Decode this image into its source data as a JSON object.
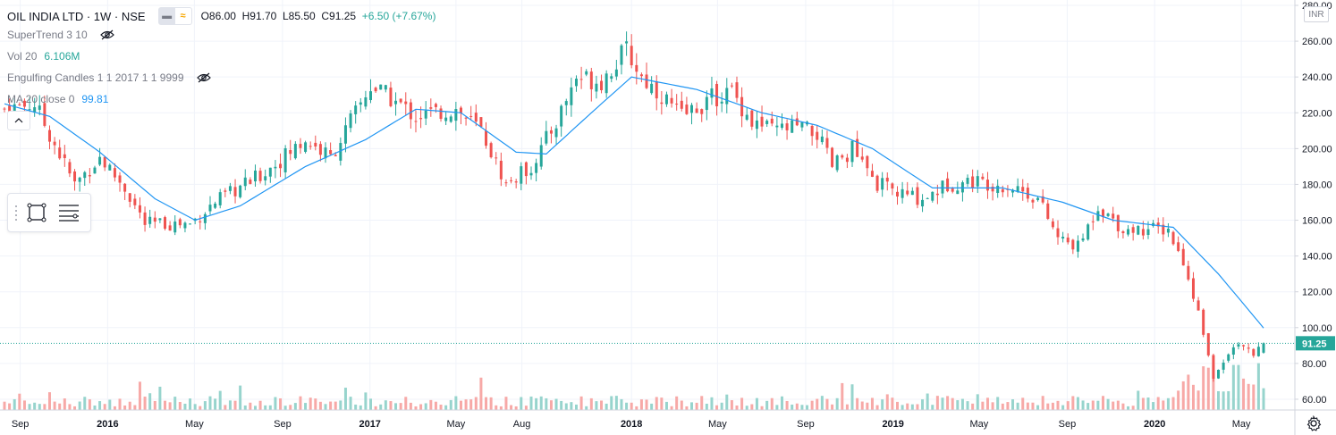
{
  "header": {
    "symbol": "OIL INDIA LTD · 1W · NSE",
    "open": "O86.00",
    "high": "H91.70",
    "low": "L85.50",
    "close": "C91.25",
    "change": "+6.50 (+7.67%)"
  },
  "indicators": [
    {
      "label": "SuperTrend 3 10",
      "value": "",
      "hidden": true
    },
    {
      "label": "Vol 20",
      "value": "6.106M",
      "hidden": false
    },
    {
      "label": "Engulfing Candles 1 1 2017 1 1 9999",
      "value": "",
      "hidden": true
    },
    {
      "label": "MA 20 close 0",
      "value": "99.81",
      "hidden": false
    }
  ],
  "currency": "INR",
  "last_price_label": "91.25",
  "colors": {
    "up": "#26a69a",
    "down": "#ef5350",
    "ma": "#2196f3",
    "grid": "#f0f3fa",
    "vol_up": "#97d4cd",
    "vol_down": "#f7a9a7"
  },
  "icons": [
    "eye-off-icon",
    "rectangle-tool-icon",
    "lines-tool-icon",
    "collapse-chevron-icon",
    "gear-icon"
  ],
  "chart_data": {
    "type": "candlestick",
    "y_axis_ticks": [
      "280.00",
      "260.00",
      "240.00",
      "220.00",
      "200.00",
      "180.00",
      "160.00",
      "140.00",
      "120.00",
      "100.00",
      "80.00",
      "60.00"
    ],
    "ylim": [
      50,
      280
    ],
    "x_axis_labels": [
      "Sep",
      "2016",
      "May",
      "Sep",
      "2017",
      "May",
      "Aug",
      "2018",
      "May",
      "Sep",
      "2019",
      "May",
      "Sep",
      "2020",
      "May"
    ],
    "price_keypoints": [
      {
        "date": "2015-08-10",
        "close": 222
      },
      {
        "date": "2015-09-21",
        "close": 225
      },
      {
        "date": "2015-11-16",
        "close": 180
      },
      {
        "date": "2015-12-21",
        "close": 195
      },
      {
        "date": "2016-01-25",
        "close": 178
      },
      {
        "date": "2016-02-22",
        "close": 158
      },
      {
        "date": "2016-04-25",
        "close": 158
      },
      {
        "date": "2016-05-30",
        "close": 170
      },
      {
        "date": "2016-08-01",
        "close": 185
      },
      {
        "date": "2016-10-03",
        "close": 205
      },
      {
        "date": "2016-11-07",
        "close": 195
      },
      {
        "date": "2016-12-05",
        "close": 215
      },
      {
        "date": "2017-01-02",
        "close": 235
      },
      {
        "date": "2017-01-30",
        "close": 228
      },
      {
        "date": "2017-03-06",
        "close": 218
      },
      {
        "date": "2017-05-01",
        "close": 222
      },
      {
        "date": "2017-06-05",
        "close": 210
      },
      {
        "date": "2017-07-10",
        "close": 180
      },
      {
        "date": "2017-08-14",
        "close": 190
      },
      {
        "date": "2017-09-18",
        "close": 215
      },
      {
        "date": "2017-10-16",
        "close": 240
      },
      {
        "date": "2017-11-20",
        "close": 238
      },
      {
        "date": "2017-12-25",
        "close": 255
      },
      {
        "date": "2018-01-15",
        "close": 240
      },
      {
        "date": "2018-02-12",
        "close": 230
      },
      {
        "date": "2018-03-12",
        "close": 218
      },
      {
        "date": "2018-04-23",
        "close": 228
      },
      {
        "date": "2018-05-21",
        "close": 232
      },
      {
        "date": "2018-06-18",
        "close": 215
      },
      {
        "date": "2018-07-16",
        "close": 210
      },
      {
        "date": "2018-08-20",
        "close": 212
      },
      {
        "date": "2018-09-17",
        "close": 208
      },
      {
        "date": "2018-10-08",
        "close": 190
      },
      {
        "date": "2018-11-05",
        "close": 200
      },
      {
        "date": "2018-12-03",
        "close": 182
      },
      {
        "date": "2019-01-07",
        "close": 175
      },
      {
        "date": "2019-02-11",
        "close": 172
      },
      {
        "date": "2019-03-18",
        "close": 180
      },
      {
        "date": "2019-04-22",
        "close": 182
      },
      {
        "date": "2019-05-27",
        "close": 180
      },
      {
        "date": "2019-06-24",
        "close": 178
      },
      {
        "date": "2019-07-22",
        "close": 172
      },
      {
        "date": "2019-08-19",
        "close": 150
      },
      {
        "date": "2019-09-16",
        "close": 145
      },
      {
        "date": "2019-10-14",
        "close": 168
      },
      {
        "date": "2019-11-18",
        "close": 155
      },
      {
        "date": "2019-12-16",
        "close": 155
      },
      {
        "date": "2020-01-20",
        "close": 155
      },
      {
        "date": "2020-02-10",
        "close": 135
      },
      {
        "date": "2020-03-02",
        "close": 108
      },
      {
        "date": "2020-03-23",
        "close": 72
      },
      {
        "date": "2020-04-20",
        "close": 90
      },
      {
        "date": "2020-05-18",
        "close": 86
      },
      {
        "date": "2020-06-01",
        "close": 91.25
      }
    ],
    "ma_keypoints": [
      {
        "date": "2015-08-10",
        "close": 225
      },
      {
        "date": "2015-10-12",
        "close": 218
      },
      {
        "date": "2015-12-21",
        "close": 198
      },
      {
        "date": "2016-03-07",
        "close": 172
      },
      {
        "date": "2016-05-02",
        "close": 160
      },
      {
        "date": "2016-07-04",
        "close": 168
      },
      {
        "date": "2016-10-03",
        "close": 190
      },
      {
        "date": "2016-12-26",
        "close": 205
      },
      {
        "date": "2017-03-06",
        "close": 222
      },
      {
        "date": "2017-05-08",
        "close": 220
      },
      {
        "date": "2017-07-24",
        "close": 198
      },
      {
        "date": "2017-09-04",
        "close": 197
      },
      {
        "date": "2017-11-06",
        "close": 220
      },
      {
        "date": "2018-01-01",
        "close": 240
      },
      {
        "date": "2018-04-02",
        "close": 233
      },
      {
        "date": "2018-07-02",
        "close": 220
      },
      {
        "date": "2018-09-17",
        "close": 213
      },
      {
        "date": "2018-12-03",
        "close": 200
      },
      {
        "date": "2019-02-25",
        "close": 178
      },
      {
        "date": "2019-06-03",
        "close": 178
      },
      {
        "date": "2019-08-26",
        "close": 170
      },
      {
        "date": "2019-11-04",
        "close": 160
      },
      {
        "date": "2020-01-27",
        "close": 156
      },
      {
        "date": "2020-03-30",
        "close": 130
      },
      {
        "date": "2020-06-01",
        "close": 99.81
      }
    ]
  }
}
